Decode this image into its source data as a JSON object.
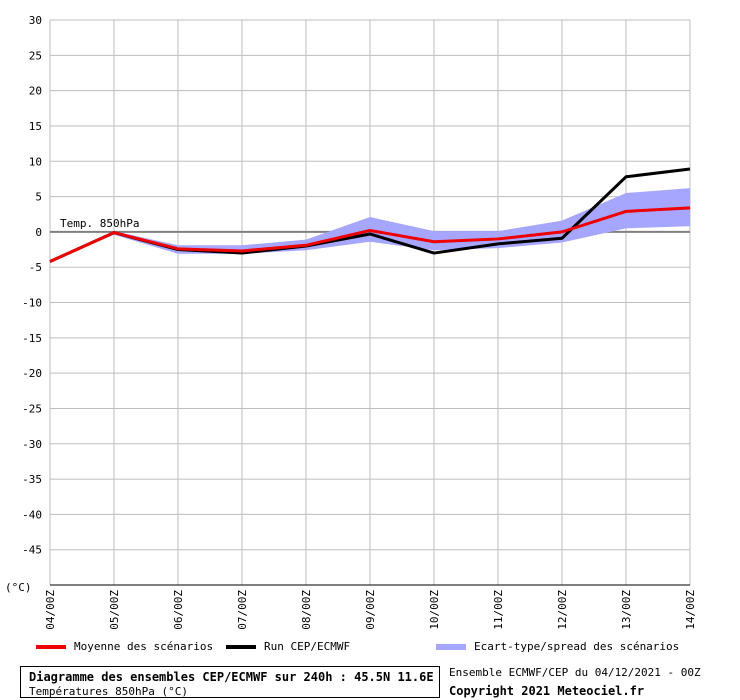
{
  "chart_data": {
    "type": "line",
    "x": [
      "04/00Z",
      "05/00Z",
      "06/00Z",
      "07/00Z",
      "08/00Z",
      "09/00Z",
      "10/00Z",
      "11/00Z",
      "12/00Z",
      "13/00Z",
      "14/00Z"
    ],
    "ylim": [
      -50,
      30
    ],
    "yticks": [
      30,
      25,
      20,
      15,
      10,
      5,
      0,
      -5,
      -10,
      -15,
      -20,
      -25,
      -30,
      -35,
      -40,
      -45
    ],
    "yunit": "(°C)",
    "annotation": "Temp. 850hPa",
    "grid": true,
    "series": [
      {
        "name": "Moyenne des scénarios",
        "color": "#ee0000",
        "values": [
          -4.2,
          -0.1,
          -2.4,
          -2.7,
          -1.9,
          0.2,
          -1.4,
          -1.0,
          0.0,
          2.9,
          3.4
        ]
      },
      {
        "name": "Run CEP/ECMWF",
        "color": "#000000",
        "values": [
          -4.2,
          -0.1,
          -2.5,
          -3.0,
          -2.0,
          -0.3,
          -3.0,
          -1.7,
          -0.9,
          7.8,
          8.9
        ]
      }
    ],
    "band": {
      "name": "Ecart-type/spread des scénarios",
      "color": "#a6a6ff",
      "upper": [
        -4.2,
        0.1,
        -1.9,
        -1.9,
        -1.1,
        2.1,
        0.1,
        0.1,
        1.6,
        5.5,
        6.2
      ],
      "lower": [
        -4.2,
        -0.4,
        -3.1,
        -3.1,
        -2.6,
        -1.4,
        -2.6,
        -2.3,
        -1.5,
        0.5,
        0.8
      ]
    }
  },
  "legend": {
    "mean_label": "Moyenne des scénarios",
    "run_label": "Run CEP/ECMWF",
    "spread_label": "Ecart-type/spread des scénarios"
  },
  "footer": {
    "title": "Diagramme des ensembles CEP/ECMWF sur 240h : 45.5N 11.6E",
    "subtitle": "Températures 850hPa (°C)",
    "run_info": "Ensemble ECMWF/CEP du 04/12/2021 - 00Z",
    "copyright": "Copyright 2021 Meteociel.fr"
  }
}
